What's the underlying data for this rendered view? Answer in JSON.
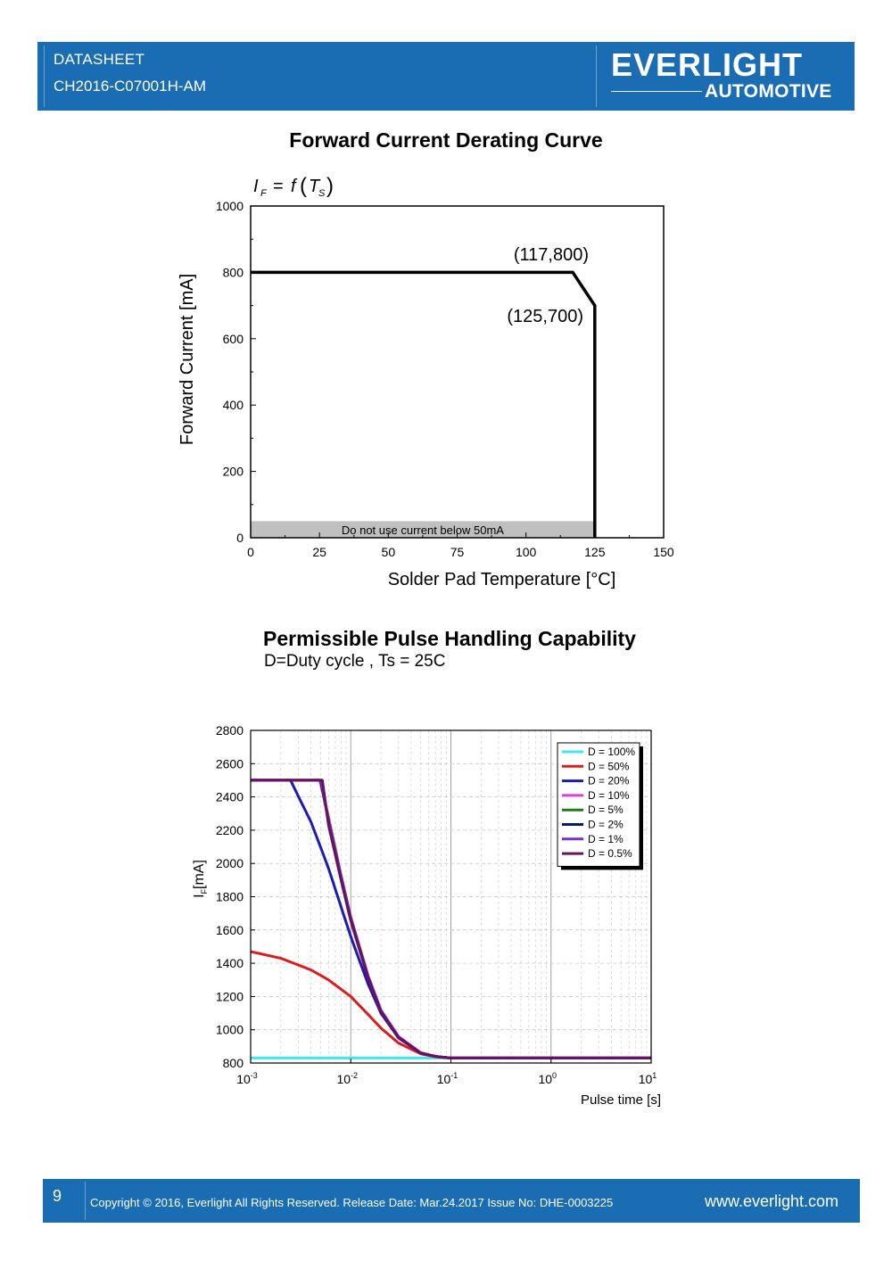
{
  "header": {
    "doc_label": "DATASHEET",
    "part_number": "CH2016-C07001H-AM",
    "brand": "EVERLIGHT",
    "brand_sub": "AUTOMOTIVE",
    "background": "#1a6db3"
  },
  "footer": {
    "page_number": "9",
    "copyright": "Copyright © 2016, Everlight All Rights Reserved. Release Date: Mar.24.2017   Issue No: DHE-0003225",
    "website": "www.everlight.com"
  },
  "chart_data": [
    {
      "type": "line",
      "title": "Forward Current Derating Curve",
      "formula": "I_F = f(T_S)",
      "xlabel": "Solder Pad Temperature [°C]",
      "ylabel": "Forward Current [mA]",
      "xlim": [
        0,
        150
      ],
      "ylim": [
        0,
        1000
      ],
      "xticks": [
        "0",
        "25",
        "50",
        "75",
        "100",
        "125",
        "150"
      ],
      "yticks": [
        "0",
        "200",
        "400",
        "600",
        "800",
        "1000"
      ],
      "series": [
        {
          "points": [
            [
              0,
              800
            ],
            [
              117,
              800
            ],
            [
              125,
              700
            ],
            [
              125,
              0
            ]
          ],
          "color": "#000000"
        }
      ],
      "annotations": [
        "(117,800)",
        "(125,700)"
      ],
      "shaded_region": {
        "y_range": [
          0,
          50
        ],
        "label": "Do not use current below 50mA",
        "color": "#c0c0c0"
      },
      "grid": false
    },
    {
      "type": "line",
      "title": "Permissible Pulse Handling Capability",
      "subtitle": "D=Duty cycle , Ts = 25C",
      "xlabel": "Pulse time [s]",
      "ylabel": "IF[mA]",
      "x_scale": "log",
      "xlim": [
        0.001,
        10
      ],
      "ylim": [
        800,
        2800
      ],
      "xticks": [
        "10-3",
        "10-2",
        "10-1",
        "100",
        "101"
      ],
      "yticks": [
        "800",
        "1000",
        "1200",
        "1400",
        "1600",
        "1800",
        "2000",
        "2200",
        "2400",
        "2600",
        "2800"
      ],
      "grid": true,
      "legend_position": "top-right",
      "series": [
        {
          "name": "D = 100%",
          "color": "#3ee8ef",
          "x": [
            0.001,
            10
          ],
          "y": [
            830,
            830
          ]
        },
        {
          "name": "D = 50%",
          "color": "#d81e1e",
          "x": [
            0.001,
            0.002,
            0.004,
            0.006,
            0.01,
            0.015,
            0.02,
            0.03,
            0.05,
            0.07,
            0.1,
            10
          ],
          "y": [
            1470,
            1430,
            1360,
            1300,
            1200,
            1090,
            1010,
            920,
            855,
            838,
            830,
            830
          ]
        },
        {
          "name": "D = 20%",
          "color": "#1b1bb0",
          "x": [
            0.001,
            0.0025,
            0.004,
            0.006,
            0.01,
            0.015,
            0.02,
            0.03,
            0.05,
            0.07,
            0.1,
            10
          ],
          "y": [
            2500,
            2500,
            2250,
            1970,
            1560,
            1270,
            1100,
            950,
            860,
            840,
            830,
            830
          ]
        },
        {
          "name": "D = 10%",
          "color": "#dd3ed9",
          "x": [
            0.001,
            0.0049,
            0.006,
            0.008,
            0.01,
            0.015,
            0.02,
            0.03,
            0.05,
            0.07,
            0.1,
            10
          ],
          "y": [
            2500,
            2500,
            2280,
            1930,
            1680,
            1320,
            1120,
            960,
            862,
            840,
            830,
            830
          ]
        },
        {
          "name": "D = 5%",
          "color": "#1f7a1f",
          "x": [
            0.001,
            0.005,
            0.006,
            0.008,
            0.01,
            0.015,
            0.02,
            0.03,
            0.05,
            0.07,
            0.1,
            10
          ],
          "y": [
            2500,
            2500,
            2260,
            1920,
            1670,
            1315,
            1115,
            955,
            860,
            840,
            830,
            830
          ]
        },
        {
          "name": "D = 2%",
          "color": "#0a1a6b",
          "x": [
            0.001,
            0.005,
            0.006,
            0.008,
            0.01,
            0.015,
            0.02,
            0.03,
            0.05,
            0.07,
            0.1,
            10
          ],
          "y": [
            2500,
            2500,
            2250,
            1910,
            1665,
            1312,
            1112,
            955,
            860,
            840,
            830,
            830
          ]
        },
        {
          "name": "D = 1%",
          "color": "#7a2fd6",
          "x": [
            0.001,
            0.0051,
            0.006,
            0.008,
            0.01,
            0.015,
            0.02,
            0.03,
            0.05,
            0.07,
            0.1,
            10
          ],
          "y": [
            2500,
            2500,
            2240,
            1905,
            1660,
            1310,
            1110,
            955,
            860,
            840,
            830,
            830
          ]
        },
        {
          "name": "D = 0.5%",
          "color": "#6a1060",
          "x": [
            0.001,
            0.0052,
            0.006,
            0.008,
            0.01,
            0.015,
            0.02,
            0.03,
            0.05,
            0.07,
            0.1,
            10
          ],
          "y": [
            2500,
            2500,
            2230,
            1900,
            1655,
            1305,
            1108,
            953,
            860,
            840,
            830,
            830
          ]
        }
      ]
    }
  ]
}
